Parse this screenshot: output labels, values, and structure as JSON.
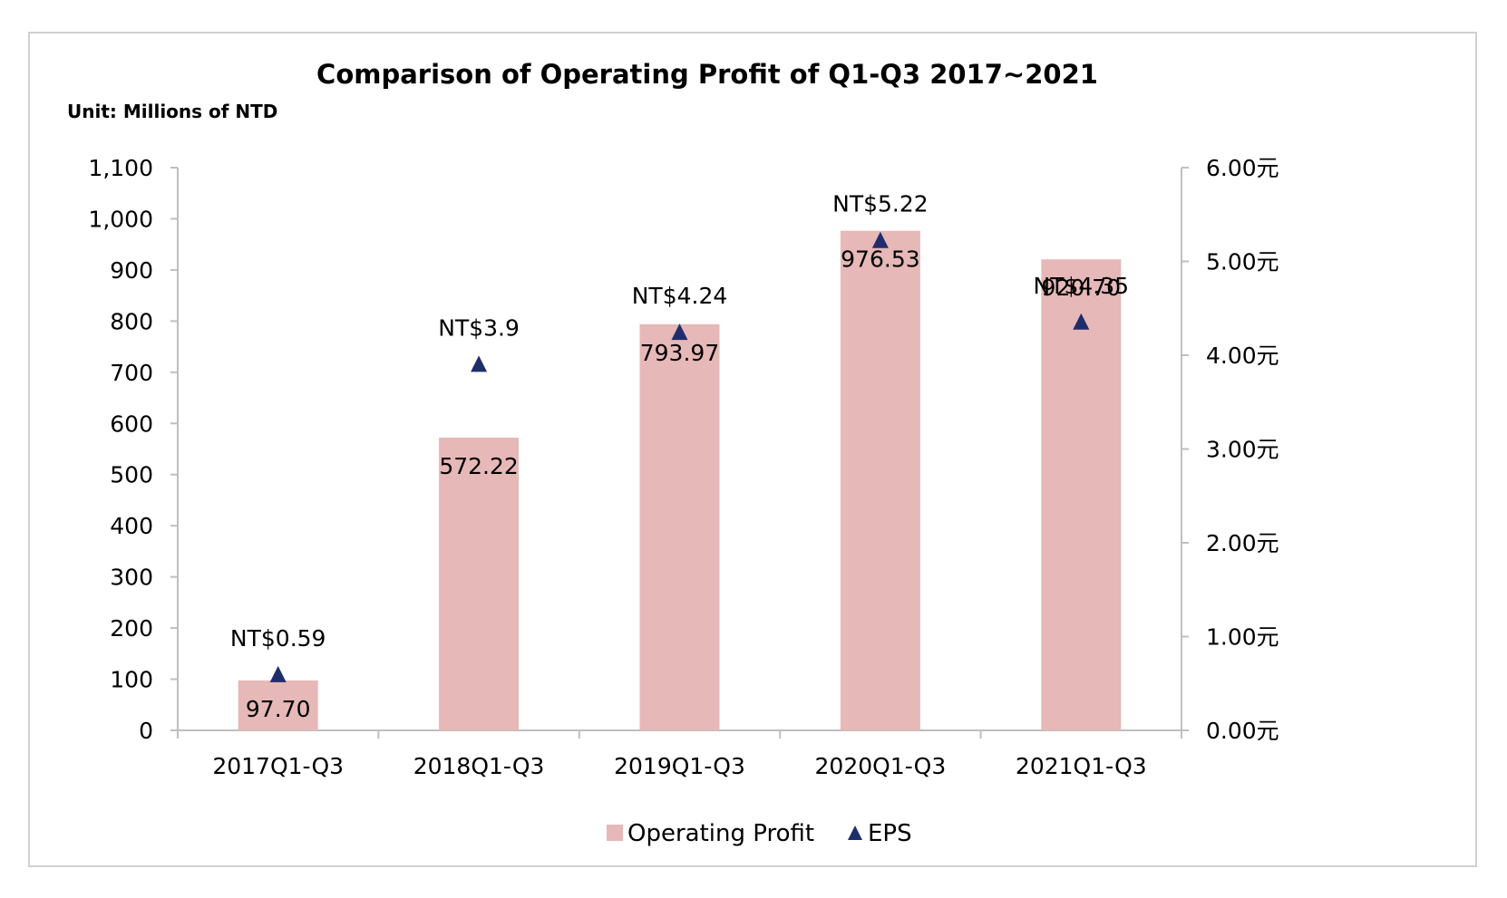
{
  "chart_data": {
    "type": "bar",
    "title": "Comparison of Operating Profit of Q1-Q3 2017~2021",
    "unit_label": "Unit: Millions of NTD",
    "categories": [
      "2017Q1-Q3",
      "2018Q1-Q3",
      "2019Q1-Q3",
      "2020Q1-Q3",
      "2021Q1-Q3"
    ],
    "series": [
      {
        "name": "Operating Profit",
        "type": "bar",
        "axis": "left",
        "values": [
          97.7,
          572.22,
          793.97,
          976.53,
          920.7
        ],
        "labels": [
          "97.70",
          "572.22",
          "793.97",
          "976.53",
          "920.70"
        ],
        "color": "#e6b8b7"
      },
      {
        "name": "EPS",
        "type": "scatter",
        "marker": "triangle",
        "axis": "right",
        "values": [
          0.59,
          3.9,
          4.24,
          5.22,
          4.35
        ],
        "labels": [
          "NT$0.59",
          "NT$3.9",
          "NT$4.24",
          "NT$5.22",
          "NT$4.35"
        ],
        "color": "#1f2d6b"
      }
    ],
    "y_left": {
      "ylim": [
        0,
        1100
      ],
      "ticks": [
        0,
        100,
        200,
        300,
        400,
        500,
        600,
        700,
        800,
        900,
        1000,
        1100
      ],
      "tick_labels": [
        "0",
        "100",
        "200",
        "300",
        "400",
        "500",
        "600",
        "700",
        "800",
        "900",
        "1,000",
        "1,100"
      ]
    },
    "y_right": {
      "ylim": [
        0,
        6
      ],
      "ticks": [
        0,
        1,
        2,
        3,
        4,
        5,
        6
      ],
      "tick_labels": [
        "0.00元",
        "1.00元",
        "2.00元",
        "3.00元",
        "4.00元",
        "5.00元",
        "6.00元"
      ]
    },
    "grid": false,
    "legend": "bottom-center"
  }
}
